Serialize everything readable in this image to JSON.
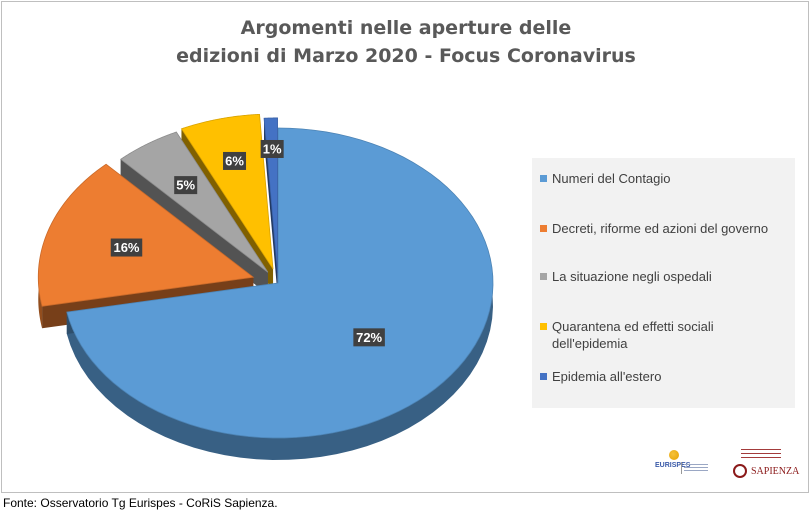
{
  "title_line1": "Argomenti nelle aperture delle",
  "title_line2": "edizioni di Marzo 2020 - Focus Coronavirus",
  "source": "Fonte: Osservatorio Tg Eurispes - CoRiS Sapienza.",
  "logos": {
    "eurispes": "EURISPES",
    "sapienza": "SAPIENZA"
  },
  "chart_data": {
    "type": "pie",
    "title": "Argomenti nelle aperture delle edizioni di Marzo 2020 - Focus Coronavirus",
    "categories": [
      "Numeri del Contagio",
      "Decreti, riforme ed azioni del governo",
      "La situazione negli ospedali",
      "Quarantena ed effetti sociali dell'epidemia",
      "Epidemia all'estero"
    ],
    "values": [
      72,
      16,
      5,
      6,
      1
    ],
    "labels": [
      "72%",
      "16%",
      "5%",
      "6%",
      "1%"
    ],
    "colors": [
      "#5b9bd5",
      "#ed7d31",
      "#a5a5a5",
      "#ffc000",
      "#4472c4"
    ],
    "legend_position": "right"
  }
}
